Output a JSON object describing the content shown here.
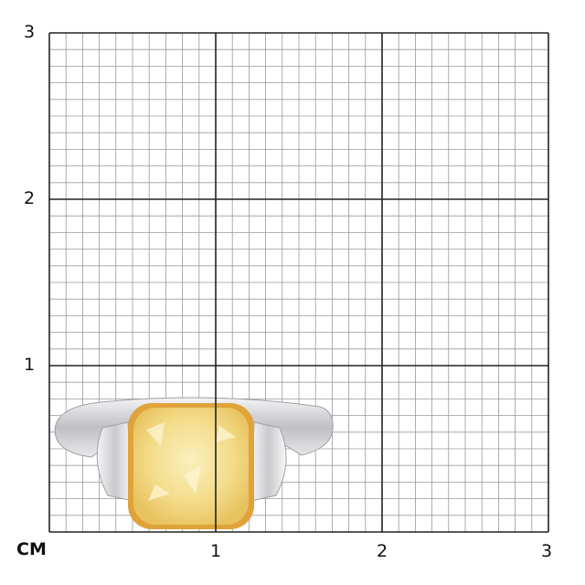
{
  "grid": {
    "unit_label": "CM",
    "x_ticks": [
      "1",
      "2",
      "3"
    ],
    "y_ticks": [
      "1",
      "2",
      "3"
    ],
    "range_cm": [
      0,
      3
    ],
    "minor_divisions_per_cm": 10,
    "major_line_color": "#222222",
    "minor_line_color": "#9a9a9a"
  },
  "product": {
    "subject": "ring",
    "center_stone_color": "#f3dc8a",
    "setting_color": "#e0a33a",
    "band_color": "#d8d8dc"
  }
}
